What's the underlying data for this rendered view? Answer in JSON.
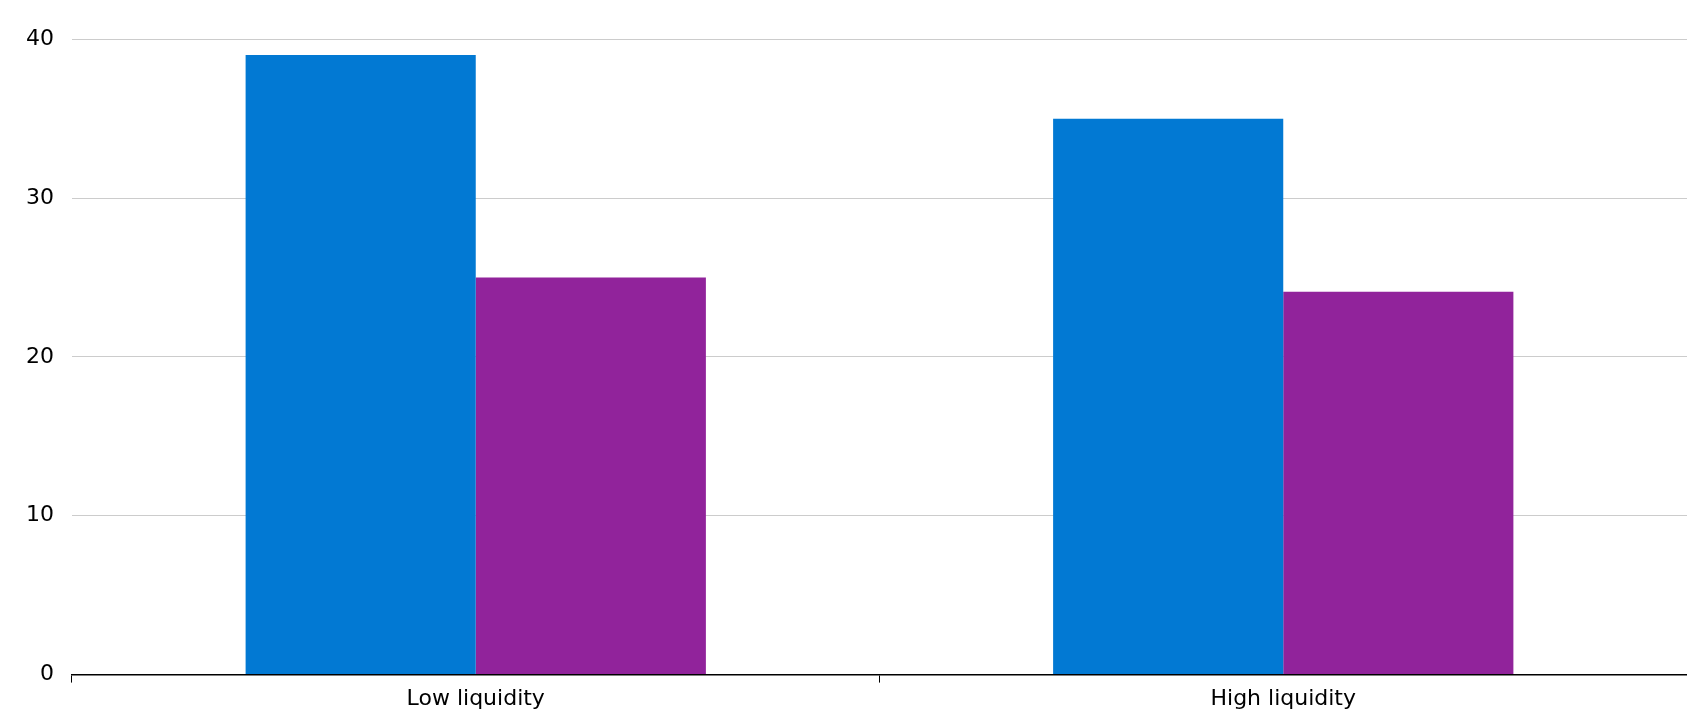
{
  "chart_data": {
    "type": "bar",
    "categories": [
      "Low liquidity",
      "High liquidity"
    ],
    "series": [
      {
        "color": "#0279d3",
        "values": [
          39,
          35
        ]
      },
      {
        "color": "#91239b",
        "values": [
          25,
          24.1
        ]
      }
    ],
    "ylim": [
      0,
      40
    ],
    "yticks": [
      0,
      10,
      20,
      30,
      40
    ],
    "grid": "y",
    "legend": false
  }
}
